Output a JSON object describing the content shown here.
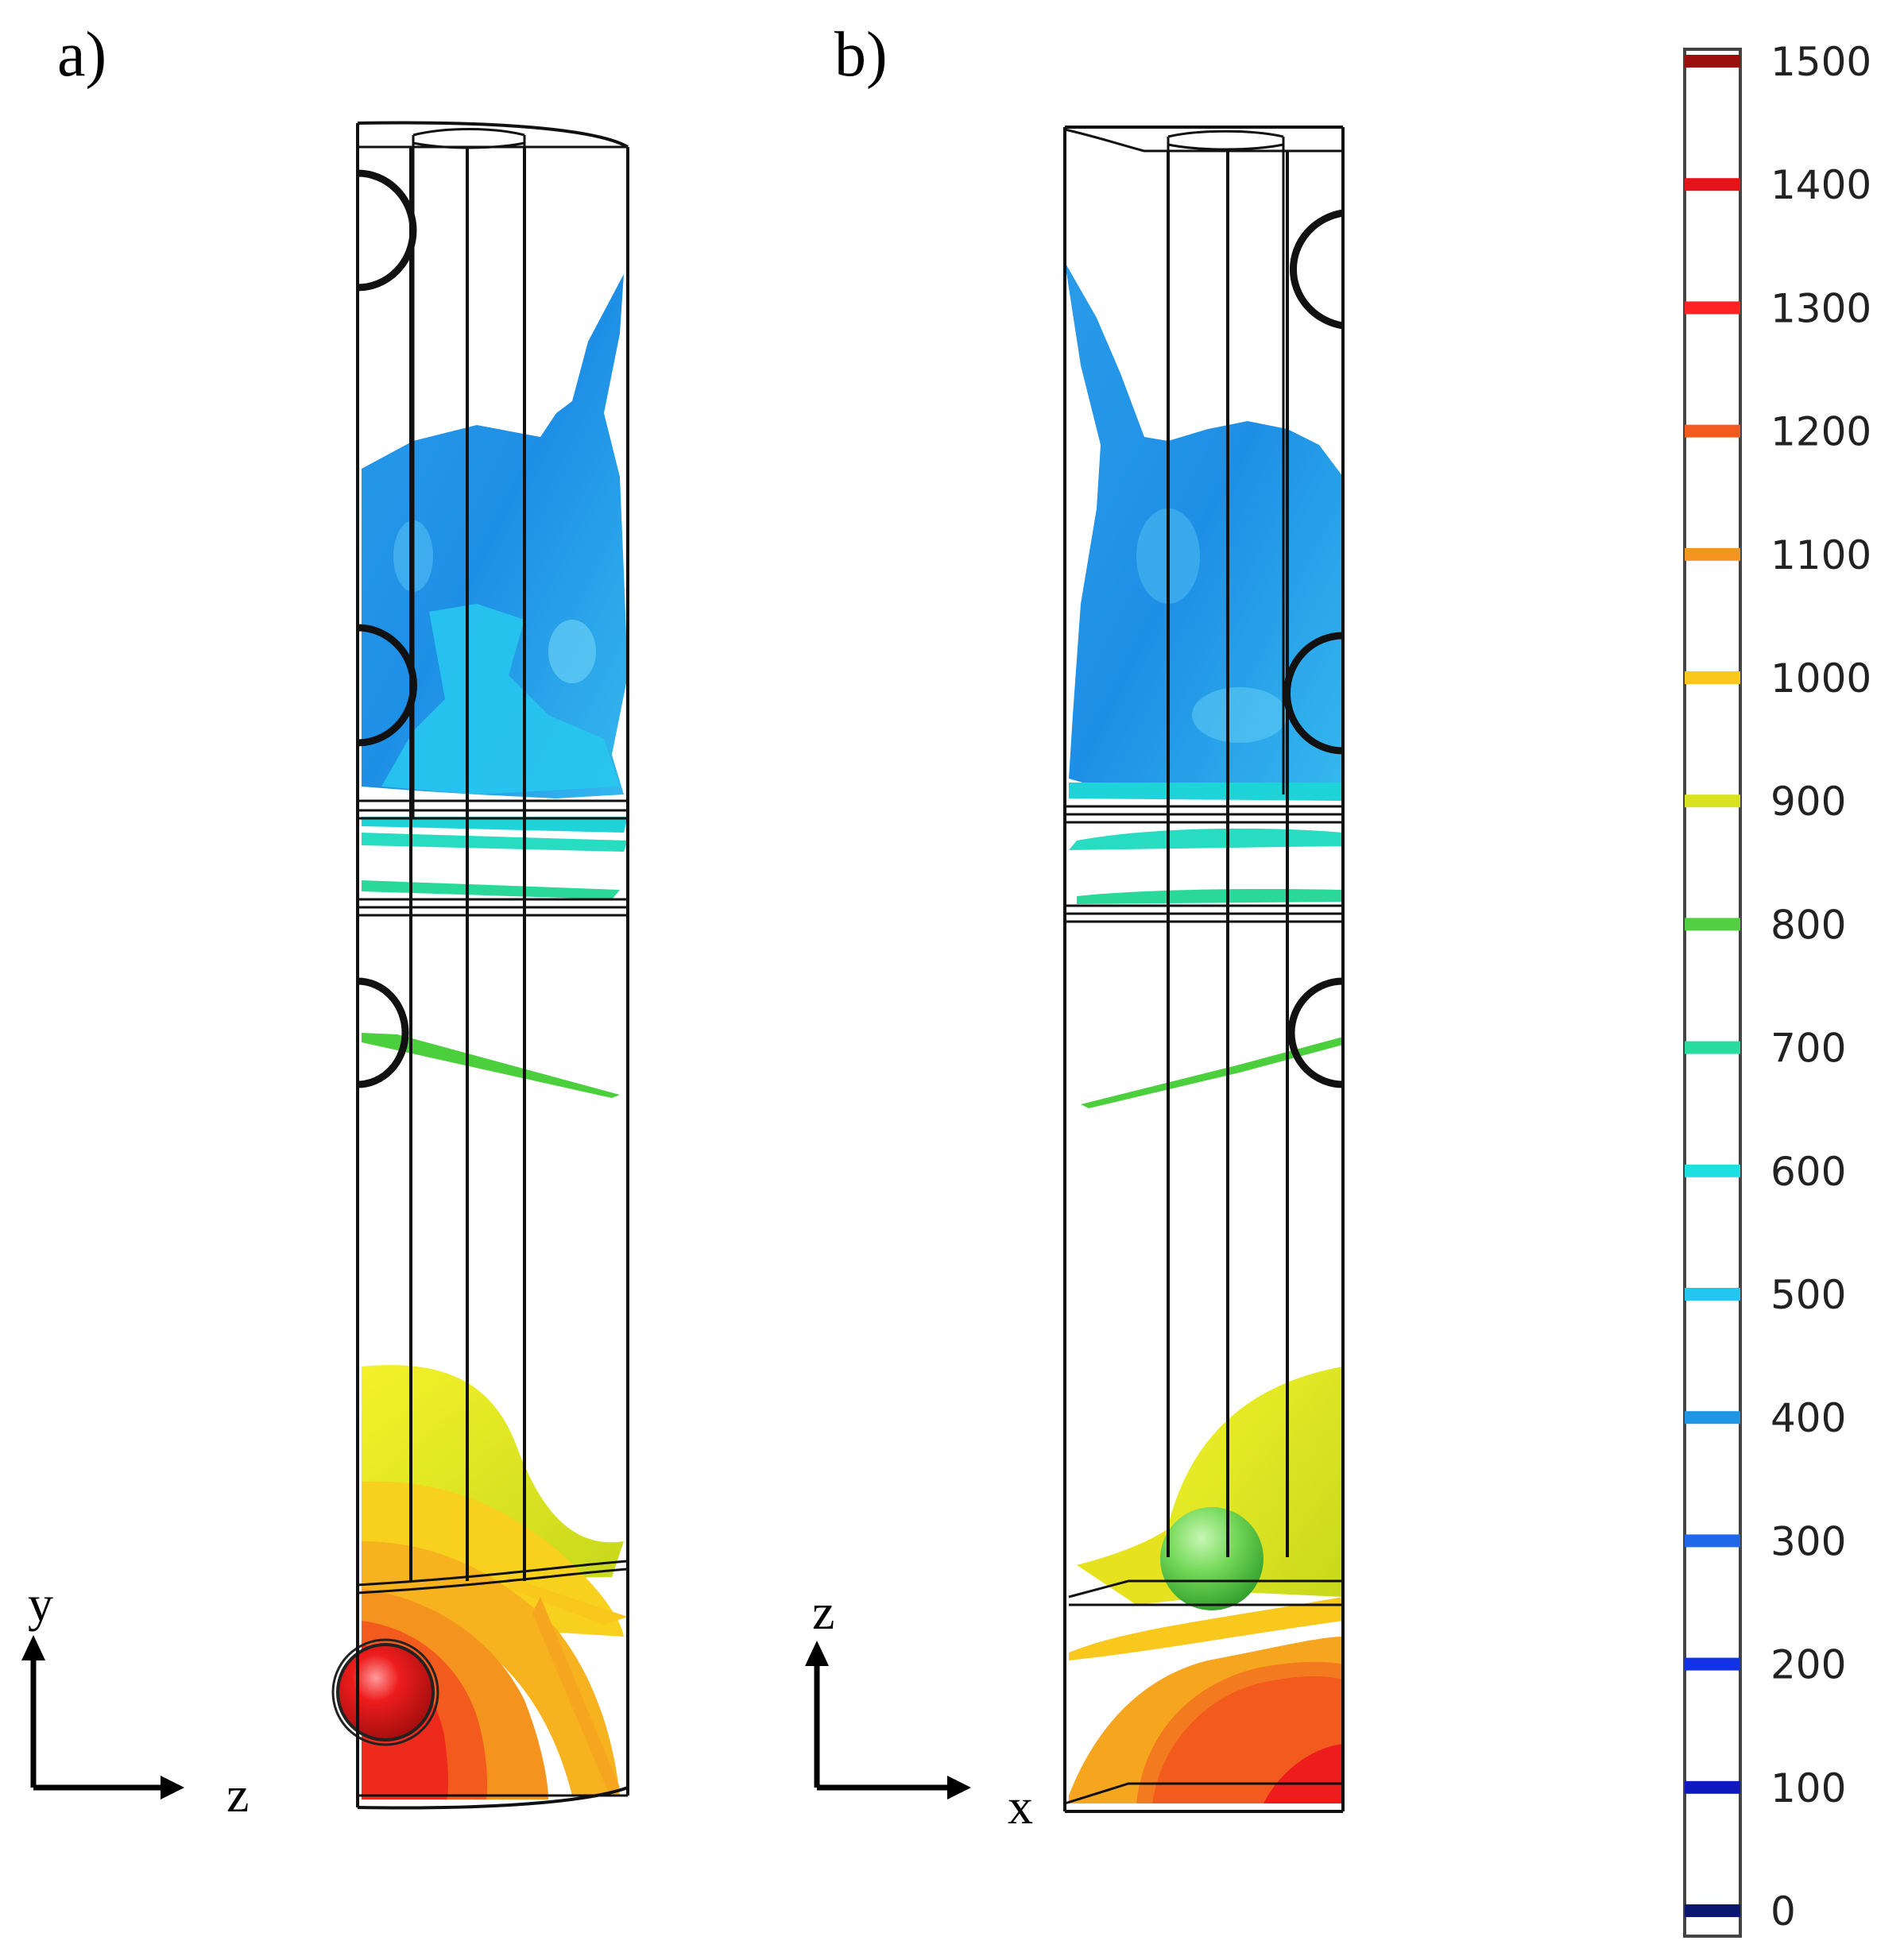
{
  "panels": [
    {
      "label": "a)",
      "axes": {
        "vertical": "y",
        "horizontal": "z"
      }
    },
    {
      "label": "b)",
      "axes": {
        "vertical": "z",
        "horizontal": "x"
      }
    }
  ],
  "colorbar": {
    "ticks": [
      {
        "value": "1500",
        "color": "#9b0e0e"
      },
      {
        "value": "1400",
        "color": "#e5131a"
      },
      {
        "value": "1300",
        "color": "#ff2424"
      },
      {
        "value": "1200",
        "color": "#f25a1e"
      },
      {
        "value": "1100",
        "color": "#f5931f"
      },
      {
        "value": "1000",
        "color": "#f8c81c"
      },
      {
        "value": "900",
        "color": "#d9e21f"
      },
      {
        "value": "800",
        "color": "#52d041"
      },
      {
        "value": "700",
        "color": "#28dca0"
      },
      {
        "value": "600",
        "color": "#1fe0e0"
      },
      {
        "value": "500",
        "color": "#22c6f0"
      },
      {
        "value": "400",
        "color": "#1f95e6"
      },
      {
        "value": "300",
        "color": "#1f68e8"
      },
      {
        "value": "200",
        "color": "#1432e6"
      },
      {
        "value": "100",
        "color": "#1018c0"
      },
      {
        "value": "0",
        "color": "#0a1670"
      }
    ]
  }
}
